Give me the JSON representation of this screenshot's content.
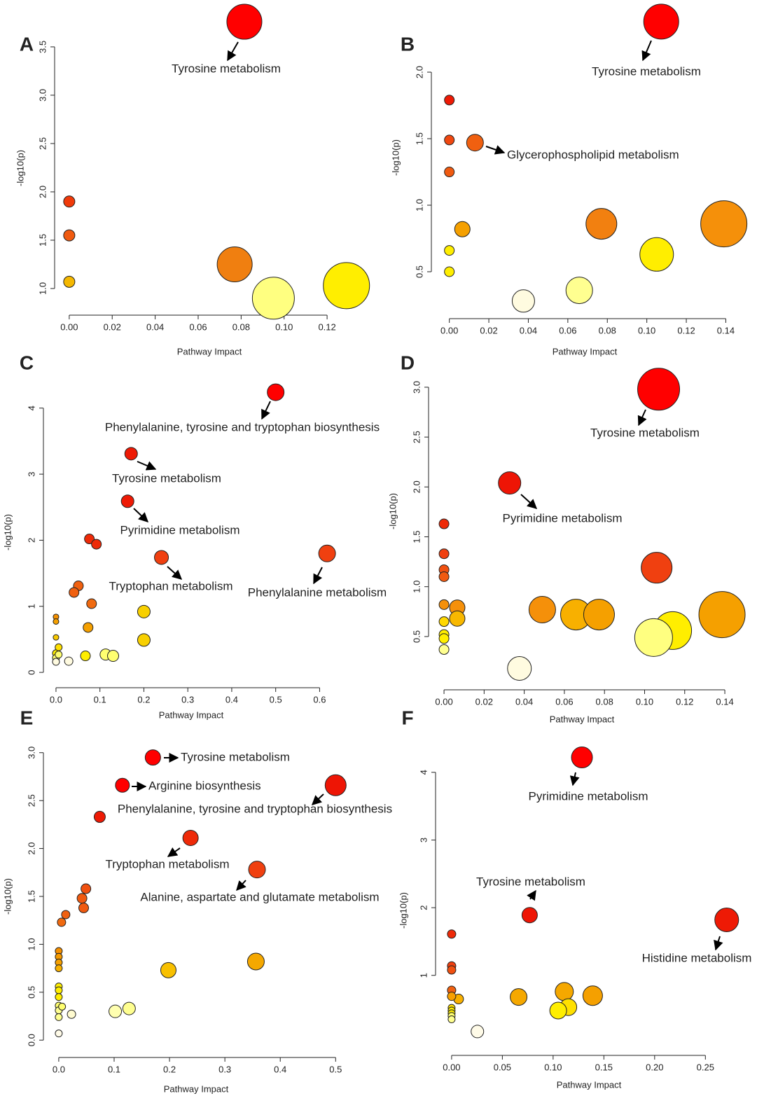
{
  "chart_data": [
    {
      "type": "scatter",
      "panel": "A",
      "xlabel": "Pathway Impact",
      "ylabel": "-log10(p)",
      "xlim": [
        -0.0068,
        0.1405
      ],
      "ylim": [
        0.797,
        3.84
      ],
      "xticks": [
        {
          "value": 0,
          "label": "0.00"
        },
        0.02,
        0.04,
        0.06,
        0.08,
        {
          "value": 0.1,
          "label": "0.10"
        },
        0.12
      ],
      "yticks": [
        {
          "value": 1,
          "label": "1.0"
        },
        1.5,
        {
          "value": 2,
          "label": "2.0"
        },
        2.5,
        {
          "value": 3,
          "label": "3.0"
        },
        3.5
      ],
      "x": [
        0,
        0,
        0,
        0.077,
        0.095,
        0.129,
        0.0815
      ],
      "y": [
        1.9,
        1.55,
        1.07,
        1.25,
        0.9,
        1.03,
        3.76
      ],
      "sizes": [
        8,
        8,
        8,
        25,
        30,
        33,
        25
      ],
      "colors": [
        "#f03a0a",
        "#f05a10",
        "#f5b800",
        "#f07f10",
        "#ffff80",
        "#ffee00",
        "#ff0000"
      ],
      "annotations": [
        "Tyrosine metabolism"
      ]
    },
    {
      "type": "scatter",
      "panel": "B",
      "xlabel": "Pathway Impact",
      "ylabel": "-log10(p)",
      "xlim": [
        -0.0091,
        0.1519
      ],
      "ylim": [
        0.2,
        2.437
      ],
      "xticks": [
        {
          "value": 0,
          "label": "0.00"
        },
        0.02,
        0.04,
        0.06,
        0.08,
        {
          "value": 0.1,
          "label": "0.10"
        },
        0.12,
        0.14
      ],
      "yticks": [
        0.5,
        {
          "value": 1,
          "label": "1.0"
        },
        1.5,
        {
          "value": 2,
          "label": "2.0"
        }
      ],
      "x": [
        0,
        0,
        0,
        0.013,
        0.0066,
        0,
        0,
        0.0375,
        0.0658,
        0.077,
        0.105,
        0.139,
        0.1073
      ],
      "y": [
        1.79,
        1.49,
        1.25,
        1.47,
        0.82,
        0.66,
        0.5,
        0.28,
        0.36,
        0.86,
        0.63,
        0.86,
        2.38
      ],
      "sizes": [
        7,
        7,
        7,
        12,
        11,
        7,
        7,
        16,
        19,
        22,
        24,
        33,
        25
      ],
      "colors": [
        "#ee1a05",
        "#f04810",
        "#f05a10",
        "#f06010",
        "#f5a000",
        "#ffee00",
        "#ffee00",
        "#fffbe0",
        "#ffff90",
        "#f28010",
        "#ffee00",
        "#f5900a",
        "#ff0000"
      ],
      "annotations": [
        "Tyrosine metabolism",
        "Glycerophospholipid metabolism"
      ]
    },
    {
      "type": "scatter",
      "panel": "C",
      "xlabel": "Pathway Impact",
      "ylabel": "-log10(p)",
      "xlim": [
        -0.0286,
        0.781
      ],
      "ylim": [
        -0.126,
        4.453
      ],
      "xticks": [
        {
          "value": 0,
          "label": "0.0"
        },
        0.1,
        0.2,
        0.3,
        0.4,
        0.5,
        0.6
      ],
      "yticks": [
        0,
        1,
        2,
        3,
        4
      ],
      "x": [
        0.5,
        0.171,
        0.163,
        0.076,
        0.092,
        0.24,
        0.617,
        0.051,
        0.041,
        0.081,
        0.073,
        0.2,
        0.2,
        0.067,
        0.113,
        0.13,
        0.029,
        0,
        0,
        0,
        0,
        0,
        0,
        0.006,
        0.006
      ],
      "y": [
        4.24,
        3.31,
        2.59,
        2.02,
        1.94,
        1.74,
        1.8,
        1.31,
        1.21,
        1.04,
        0.68,
        0.92,
        0.49,
        0.25,
        0.27,
        0.25,
        0.17,
        0.84,
        0.77,
        0.53,
        0.29,
        0.22,
        0.16,
        0.38,
        0.27
      ],
      "sizes": [
        12,
        9,
        9,
        7,
        7,
        10,
        12,
        7,
        7,
        7,
        7,
        9,
        9,
        7,
        8,
        8,
        6,
        4,
        4,
        4,
        5,
        5,
        5,
        5,
        5
      ],
      "colors": [
        "#ff0000",
        "#ee1a05",
        "#ee1a05",
        "#ee2a08",
        "#ee2a08",
        "#f04010",
        "#f04010",
        "#f06010",
        "#f06010",
        "#f06a10",
        "#f5a000",
        "#f8d000",
        "#f8d000",
        "#ffee00",
        "#ffff70",
        "#ffff70",
        "#fffbe0",
        "#f59000",
        "#f5a000",
        "#f8c800",
        "#ffee00",
        "#ffff70",
        "#fffbe0",
        "#ffe000",
        "#ffff70"
      ],
      "annotations": [
        "Phenylalanine, tyrosine and tryptophan biosynthesis",
        "Tyrosine metabolism",
        "Pyrimidine metabolism",
        "Tryptophan metabolism",
        "Phenylalanine metabolism"
      ]
    },
    {
      "type": "scatter",
      "panel": "D",
      "xlabel": "Pathway Impact",
      "ylabel": "-log10(p)",
      "xlim": [
        -0.0077,
        0.1522
      ],
      "ylim": [
        0.036,
        3.161
      ],
      "xticks": [
        {
          "value": 0,
          "label": "0.00"
        },
        0.02,
        0.04,
        0.06,
        0.08,
        {
          "value": 0.1,
          "label": "0.10"
        },
        0.12,
        0.14
      ],
      "yticks": [
        0.5,
        {
          "value": 1,
          "label": "1.0"
        },
        1.5,
        {
          "value": 2,
          "label": "2.0"
        },
        2.5,
        {
          "value": 3,
          "label": "3.0"
        }
      ],
      "x": [
        0.107,
        0.0327,
        0,
        0,
        0,
        0,
        0,
        0,
        0,
        0,
        0,
        0.0066,
        0.0066,
        0.0376,
        0.049,
        0.0658,
        0.0773,
        0.106,
        0.114,
        0.1045,
        0.1386
      ],
      "y": [
        2.98,
        2.04,
        1.63,
        1.33,
        1.17,
        1.1,
        0.82,
        0.65,
        0.52,
        0.48,
        0.37,
        0.79,
        0.68,
        0.18,
        0.77,
        0.72,
        0.72,
        1.19,
        0.56,
        0.49,
        0.72
      ],
      "sizes": [
        30,
        16,
        7,
        7,
        7,
        7,
        7,
        7,
        7,
        7,
        7,
        11,
        11,
        17,
        19,
        22,
        22,
        22,
        27,
        27,
        33
      ],
      "colors": [
        "#ff0000",
        "#ee1505",
        "#ee2a08",
        "#f04010",
        "#f05010",
        "#f05a10",
        "#f5900a",
        "#ffd800",
        "#ffee00",
        "#ffee00",
        "#ffff90",
        "#f5900a",
        "#f8b800",
        "#fffbe0",
        "#f5900a",
        "#f8b000",
        "#f5a000",
        "#f04010",
        "#ffee00",
        "#ffff80",
        "#f5a000"
      ],
      "annotations": [
        "Tyrosine metabolism",
        "Pyrimidine metabolism"
      ]
    },
    {
      "type": "scatter",
      "panel": "E",
      "xlabel": "Pathway Impact",
      "ylabel": "-log10(p)",
      "xlim": [
        -0.0277,
        0.64
      ],
      "ylim": [
        -0.108,
        3.181
      ],
      "xticks": [
        {
          "value": 0,
          "label": "0.0"
        },
        0.1,
        0.2,
        0.3,
        0.4,
        0.5
      ],
      "yticks": [
        {
          "value": 0,
          "label": "0.0"
        },
        0.5,
        {
          "value": 1,
          "label": "1.0"
        },
        1.5,
        {
          "value": 2,
          "label": "2.0"
        },
        2.5,
        {
          "value": 3,
          "label": "3.0"
        }
      ],
      "x": [
        0.17,
        0.115,
        0.5,
        0.074,
        0.238,
        0.358,
        0.049,
        0.042,
        0.045,
        0.0126,
        0.005,
        0,
        0,
        0,
        0,
        0,
        0,
        0,
        0,
        0,
        0,
        0.006,
        0.023,
        0,
        0.198,
        0.356,
        0.102,
        0.127
      ],
      "y": [
        2.95,
        2.66,
        2.66,
        2.33,
        2.11,
        1.78,
        1.58,
        1.48,
        1.38,
        1.31,
        1.23,
        0.93,
        0.87,
        0.81,
        0.75,
        0.56,
        0.52,
        0.45,
        0.36,
        0.31,
        0.24,
        0.35,
        0.27,
        0.07,
        0.73,
        0.82,
        0.3,
        0.33
      ],
      "sizes": [
        11,
        10,
        15,
        8,
        11,
        12,
        7,
        7,
        7,
        6,
        6,
        5,
        5,
        5,
        5,
        5,
        5,
        5,
        5,
        5,
        5,
        5,
        6,
        5,
        11,
        12,
        9,
        9
      ],
      "colors": [
        "#ff0000",
        "#ff0000",
        "#ee1505",
        "#ee1a05",
        "#ee2a08",
        "#f04010",
        "#f05010",
        "#f05a10",
        "#f05a10",
        "#f06010",
        "#f06a10",
        "#f59000",
        "#f59a00",
        "#f5a000",
        "#f8b000",
        "#ffee00",
        "#ffee00",
        "#ffee00",
        "#ffff70",
        "#ffff90",
        "#ffff90",
        "#ffff70",
        "#fffbd0",
        "#fffbe8",
        "#f8c000",
        "#f5a800",
        "#ffffb0",
        "#ffff90"
      ],
      "annotations": [
        "Tyrosine metabolism",
        "Arginine biosynthesis",
        "Phenylalanine, tyrosine and tryptophan biosynthesis",
        "Tryptophan metabolism",
        "Alanine, aspartate and glutamate metabolism"
      ]
    },
    {
      "type": "scatter",
      "panel": "F",
      "xlabel": "Pathway Impact",
      "ylabel": "-log10(p)",
      "xlim": [
        -0.0158,
        0.3036
      ],
      "ylim": [
        -0.079,
        4.443
      ],
      "xticks": [
        {
          "value": 0,
          "label": "0.00"
        },
        0.05,
        {
          "value": 0.1,
          "label": "0.10"
        },
        0.15,
        {
          "value": 0.2,
          "label": "0.20"
        },
        0.25
      ],
      "yticks": [
        1,
        2,
        3,
        4
      ],
      "x": [
        0.1284,
        0.0769,
        0.271,
        0,
        0,
        0,
        0,
        0,
        0.0069,
        0,
        0,
        0,
        0,
        0,
        0.0254,
        0.066,
        0.111,
        0.115,
        0.105,
        0.139
      ],
      "y": [
        4.22,
        1.89,
        1.82,
        1.61,
        1.14,
        1.08,
        0.78,
        0.69,
        0.65,
        0.52,
        0.48,
        0.44,
        0.4,
        0.35,
        0.17,
        0.68,
        0.76,
        0.53,
        0.48,
        0.7
      ],
      "sizes": [
        15,
        11,
        17,
        6,
        6,
        6,
        6,
        6,
        7,
        5,
        5,
        5,
        5,
        5,
        9,
        12,
        13,
        12,
        12,
        14
      ],
      "colors": [
        "#ff0000",
        "#ee1505",
        "#ee1a05",
        "#ee2a08",
        "#f04010",
        "#f05010",
        "#f06010",
        "#f8a000",
        "#f8b000",
        "#ffe000",
        "#ffee00",
        "#ffee00",
        "#ffff70",
        "#ffff90",
        "#fffbe8",
        "#f5a800",
        "#f5a800",
        "#ffe000",
        "#ffee00",
        "#f5a000"
      ],
      "annotations": [
        "Pyrimidine metabolism",
        "Tyrosine metabolism",
        "Histidine metabolism"
      ]
    }
  ]
}
